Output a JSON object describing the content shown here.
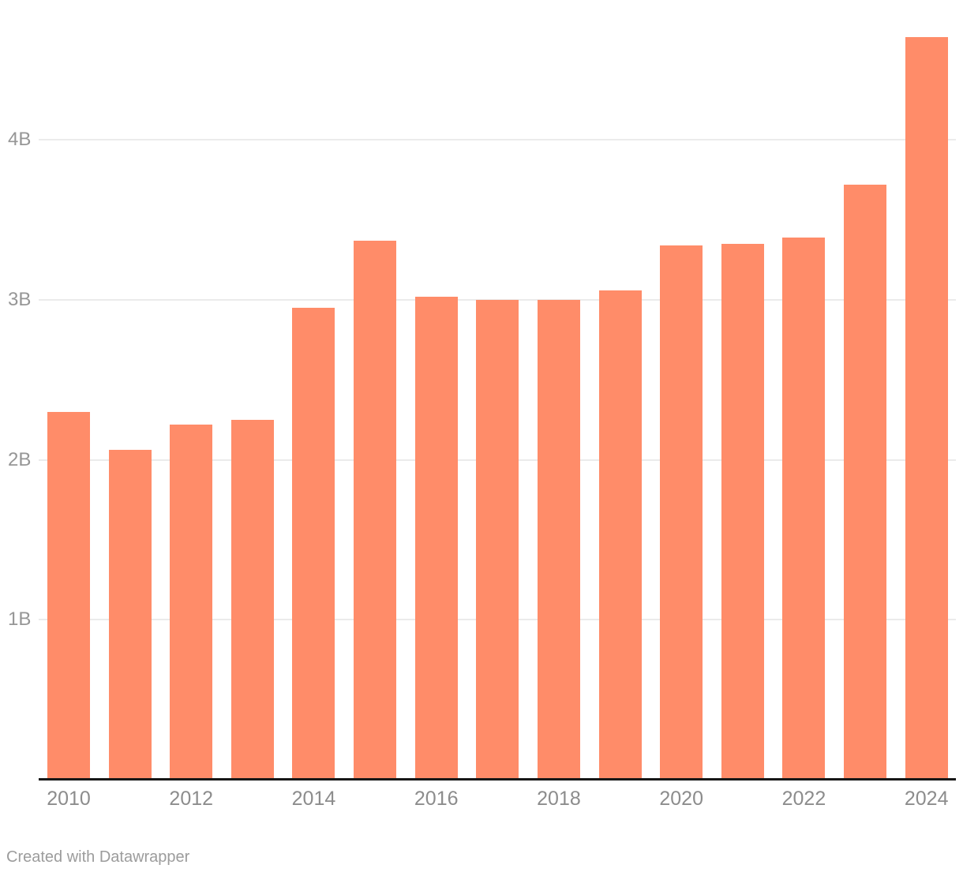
{
  "footer": {
    "credit": "Created with Datawrapper"
  },
  "colors": {
    "bar": "#ff8c69",
    "gridline": "#ebebeb",
    "axis_line": "#171717",
    "y_tick_text": "#969696",
    "x_tick_text": "#8c8c8c",
    "credit_text": "#9c9c9c",
    "background": "#ffffff"
  },
  "chart_data": {
    "type": "bar",
    "title": "",
    "xlabel": "",
    "ylabel": "",
    "unit": "B",
    "categories": [
      "2010",
      "2011",
      "2012",
      "2013",
      "2014",
      "2015",
      "2016",
      "2017",
      "2018",
      "2019",
      "2020",
      "2021",
      "2022",
      "2023",
      "2024"
    ],
    "values": [
      2.3,
      2.06,
      2.22,
      2.25,
      2.95,
      3.37,
      3.02,
      3.0,
      3.0,
      3.06,
      3.34,
      3.35,
      3.39,
      3.72,
      4.64
    ],
    "series": [
      {
        "name": "value",
        "values": [
          2.3,
          2.06,
          2.22,
          2.25,
          2.95,
          3.37,
          3.02,
          3.0,
          3.0,
          3.06,
          3.34,
          3.35,
          3.39,
          3.72,
          4.64
        ]
      }
    ],
    "ylim": [
      0,
      4.87
    ],
    "grid": true,
    "legend": false,
    "yticks": [
      {
        "value": 1,
        "label": "1B"
      },
      {
        "value": 2,
        "label": "2B"
      },
      {
        "value": 3,
        "label": "3B"
      },
      {
        "value": 4,
        "label": "4B"
      }
    ],
    "xtick_labels": [
      "2010",
      "2012",
      "2014",
      "2016",
      "2018",
      "2020",
      "2022",
      "2024"
    ]
  }
}
